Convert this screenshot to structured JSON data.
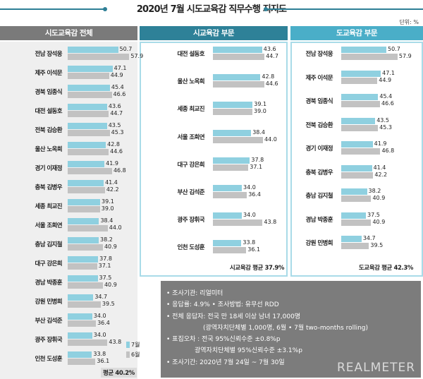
{
  "title": "2020년 7월 시도교육감 직무수행 지지도",
  "unit": "단위: %",
  "colors": {
    "july": "#8fd0e0",
    "june": "#c2c2c2",
    "all_header": "#7a7a7a",
    "city_header": "#2e8198",
    "province_header": "#4aaec8"
  },
  "legend": {
    "july": "7월",
    "june": "6월"
  },
  "chart_data": [
    {
      "type": "bar",
      "title": "시도교육감 전체",
      "series_names": [
        "7월",
        "6월"
      ],
      "categories": [
        "전남 장석웅",
        "제주 이석문",
        "경북 임종식",
        "대전 설동호",
        "전북 김승환",
        "울산 노옥희",
        "경기 이재정",
        "충북 김병우",
        "세종 최교진",
        "서울 조희연",
        "충남 김지철",
        "대구 강은희",
        "경남 박종훈",
        "강원 민병희",
        "부산 김석준",
        "광주 장휘국",
        "인천 도성훈"
      ],
      "july": [
        50.7,
        47.1,
        45.4,
        43.6,
        43.5,
        42.8,
        41.9,
        41.4,
        39.1,
        38.4,
        38.2,
        37.8,
        37.5,
        34.7,
        34.0,
        34.0,
        33.8
      ],
      "june": [
        57.9,
        44.9,
        46.6,
        44.7,
        45.3,
        44.6,
        46.8,
        42.2,
        39.0,
        44.0,
        40.9,
        37.1,
        40.9,
        39.5,
        36.4,
        43.8,
        36.1
      ],
      "average": "평균 40.2%"
    },
    {
      "type": "bar",
      "title": "시교육감 부문",
      "series_names": [
        "7월",
        "6월"
      ],
      "categories": [
        "대전 설동호",
        "울산 노옥희",
        "세종 최교진",
        "서울 조희연",
        "대구 강은희",
        "부산 김석준",
        "광주 장휘국",
        "인천 도성훈"
      ],
      "july": [
        43.6,
        42.8,
        39.1,
        38.4,
        37.8,
        34.0,
        34.0,
        33.8
      ],
      "june": [
        44.7,
        44.6,
        39.0,
        44.0,
        37.1,
        36.4,
        43.8,
        36.1
      ],
      "average": "시교육감 평균 37.9%"
    },
    {
      "type": "bar",
      "title": "도교육감 부문",
      "series_names": [
        "7월",
        "6월"
      ],
      "categories": [
        "전남 장석웅",
        "제주 이석문",
        "경북 임종식",
        "전북 김승환",
        "경기 이재정",
        "충북 김병우",
        "충남 김지철",
        "경남 박종훈",
        "강원 민병희"
      ],
      "july": [
        50.7,
        47.1,
        45.4,
        43.5,
        41.9,
        41.4,
        38.2,
        37.5,
        34.7
      ],
      "june": [
        57.9,
        44.9,
        46.6,
        45.3,
        46.8,
        42.2,
        40.9,
        40.9,
        39.5
      ],
      "average": "도교육감 평균 42.3%"
    }
  ],
  "info": {
    "lines": [
      "• 조사기관: 리얼미터",
      "• 응답률: 4.9% • 조사방법: 유무선 RDD",
      "• 전체 응답자: 전국 만 18세 이상 남녀 17,000명",
      "(광역자치단체별 1,000명, 6월 • 7월 two-months rolling)",
      "• 표집오차 : 전국 95%신뢰수준 ±0.8%p",
      "광역자치단체별 95%신뢰수준 ±3.1%p",
      "• 조사기간: 2020년 7월 24일 ~ 7월 30일"
    ],
    "logo": "REALMETER"
  }
}
